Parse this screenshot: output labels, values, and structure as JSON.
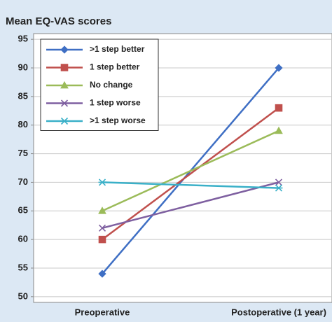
{
  "chart_data": {
    "type": "line",
    "title": "Mean EQ-VAS scores",
    "categories": [
      "Preoperative",
      "Postoperative (1 year)"
    ],
    "series": [
      {
        "name": ">1 step better",
        "color": "#3f6fc4",
        "marker": "diamond",
        "values": [
          54,
          90
        ]
      },
      {
        "name": "1 step better",
        "color": "#c0504d",
        "marker": "square",
        "values": [
          60,
          83
        ]
      },
      {
        "name": "No change",
        "color": "#9bbb59",
        "marker": "triangle",
        "values": [
          65,
          79
        ]
      },
      {
        "name": "1 step worse",
        "color": "#7e5fa0",
        "marker": "x",
        "values": [
          62,
          70
        ]
      },
      {
        "name": ">1 step worse",
        "color": "#3ab0c8",
        "marker": "asterisk",
        "values": [
          70,
          69
        ]
      }
    ],
    "ylim": [
      49,
      96
    ],
    "yticks": [
      50,
      55,
      60,
      65,
      70,
      75,
      80,
      85,
      90,
      95
    ],
    "grid": true,
    "legend": "upper left"
  }
}
